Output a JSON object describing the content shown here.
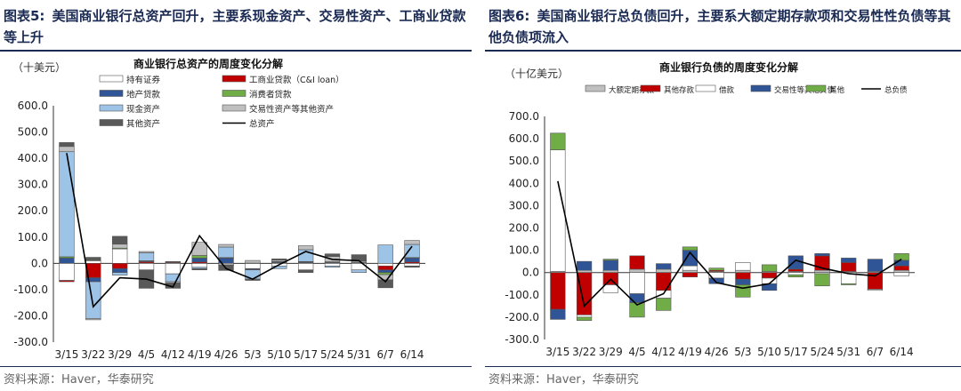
{
  "left": {
    "fig_no": "图表5:",
    "title": "美国商业银行总资产回升，主要系现金资产、交易性资产、工商业贷款等上升",
    "source": "资料来源：Haver，华泰研究",
    "chart_data": {
      "type": "bar",
      "stacked": true,
      "title": "商业银行总资产的周度变化分解",
      "unit": "（十美元）",
      "categories": [
        "3/15",
        "3/22",
        "3/29",
        "4/5",
        "4/12",
        "4/19",
        "4/26",
        "5/3",
        "5/10",
        "5/17",
        "5/24",
        "5/31",
        "6/7",
        "6/14"
      ],
      "yticks": [
        "600.0",
        "500.0",
        "400.0",
        "300.0",
        "200.0",
        "100.0",
        "0.0",
        "-100.0",
        "-200.0",
        "-300.0"
      ],
      "ylim": [
        -300,
        600
      ],
      "legend_columns": 2,
      "series": [
        {
          "name": "持有证券",
          "color": "#ffffff",
          "values": [
            -65,
            10,
            55,
            -25,
            -40,
            -15,
            -5,
            -20,
            -10,
            -25,
            -10,
            -25,
            -10,
            -10
          ]
        },
        {
          "name": "工商业贷款（C&I loan）",
          "color": "#c00000",
          "values": [
            -5,
            -55,
            -20,
            5,
            3,
            5,
            -2,
            -2,
            2,
            2,
            2,
            0,
            -15,
            5
          ]
        },
        {
          "name": "地产贷款",
          "color": "#2f5597",
          "values": [
            20,
            -15,
            -15,
            3,
            2,
            15,
            20,
            -3,
            3,
            3,
            2,
            2,
            -10,
            15
          ]
        },
        {
          "name": "消费者贷款",
          "color": "#70ad47",
          "values": [
            5,
            3,
            3,
            2,
            2,
            10,
            2,
            1,
            2,
            2,
            2,
            1,
            -8,
            2
          ]
        },
        {
          "name": "现金资产",
          "color": "#9dc3e6",
          "values": [
            400,
            -140,
            -10,
            30,
            -30,
            -5,
            40,
            -35,
            -10,
            45,
            -5,
            -10,
            70,
            50
          ]
        },
        {
          "name": "交易性资产等其他资产",
          "color": "#bfbfbf",
          "values": [
            20,
            -5,
            15,
            5,
            -5,
            50,
            10,
            10,
            5,
            15,
            20,
            5,
            -20,
            15
          ]
        },
        {
          "name": "其他资产",
          "color": "#595959",
          "values": [
            15,
            10,
            30,
            -70,
            -20,
            -5,
            -20,
            -5,
            5,
            -10,
            10,
            25,
            -30,
            -5
          ]
        }
      ],
      "line": {
        "name": "总资产",
        "color": "#000000",
        "values": [
          420,
          -165,
          -55,
          -60,
          -90,
          105,
          -20,
          -60,
          -5,
          45,
          15,
          10,
          -70,
          65
        ]
      }
    }
  },
  "right": {
    "fig_no": "图表6:",
    "title": "美国商业银行总负债回升，主要系大额定期存款项和交易性性负债等其他负债项流入",
    "source": "资料来源：Haver，华泰研究",
    "chart_data": {
      "type": "bar",
      "stacked": true,
      "title": "商业银行负债的周度变化分解",
      "unit": "（十亿美元）",
      "categories": [
        "3/15",
        "3/22",
        "3/29",
        "4/5",
        "4/12",
        "4/19",
        "4/26",
        "5/3",
        "5/10",
        "5/17",
        "5/24",
        "5/31",
        "6/7",
        "6/14"
      ],
      "yticks": [
        "700.0",
        "600.0",
        "500.0",
        "400.0",
        "300.0",
        "200.0",
        "100.0",
        "0.0",
        "-100.0",
        "-200.0",
        "-300.0"
      ],
      "ylim": [
        -300,
        700
      ],
      "legend_columns": 6,
      "series": [
        {
          "name": "大额定期存款",
          "color": "#bfbfbf",
          "values": [
            5,
            10,
            10,
            15,
            15,
            10,
            5,
            10,
            5,
            5,
            10,
            5,
            5,
            10
          ]
        },
        {
          "name": "其他存款",
          "color": "#c00000",
          "values": [
            -165,
            -190,
            -55,
            60,
            -80,
            -20,
            5,
            -30,
            -25,
            10,
            65,
            40,
            -75,
            20
          ]
        },
        {
          "name": "借款",
          "color": "#ffffff",
          "values": [
            545,
            -10,
            -35,
            -95,
            -35,
            20,
            -25,
            35,
            -25,
            -10,
            -5,
            -50,
            -5,
            -15
          ]
        },
        {
          "name": "交易性等其他负债",
          "color": "#2f5597",
          "values": [
            -45,
            40,
            45,
            -40,
            25,
            70,
            -25,
            -25,
            -30,
            60,
            10,
            20,
            55,
            25
          ]
        },
        {
          "name": "其他",
          "color": "#70ad47",
          "values": [
            75,
            -15,
            5,
            -65,
            -55,
            15,
            10,
            -55,
            30,
            -10,
            -55,
            -5,
            0,
            30
          ]
        }
      ],
      "line": {
        "name": "总负债",
        "color": "#000000",
        "values": [
          410,
          -150,
          -30,
          -145,
          -95,
          90,
          -45,
          -70,
          -50,
          55,
          20,
          -5,
          -15,
          60
        ]
      }
    }
  }
}
